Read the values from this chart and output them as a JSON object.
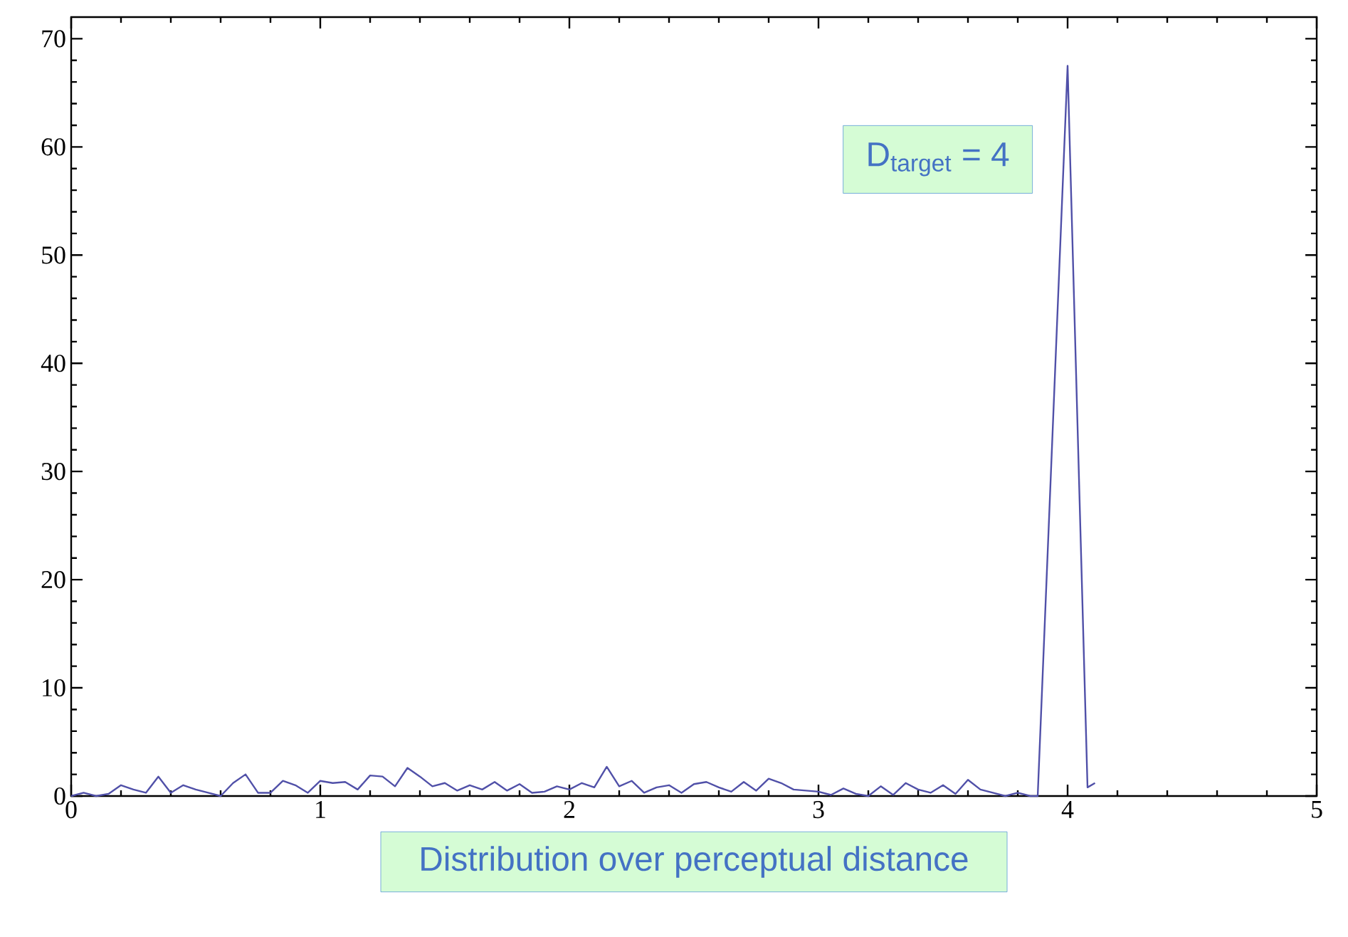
{
  "chart_data": {
    "type": "line",
    "xlabel": "Distribution over perceptual distance",
    "annotations": [
      "D$_{target}$ = 4"
    ],
    "x": [
      0,
      0.05,
      0.1,
      0.15,
      0.2,
      0.25,
      0.3,
      0.35,
      0.4,
      0.45,
      0.5,
      0.55,
      0.6,
      0.65,
      0.7,
      0.75,
      0.8,
      0.85,
      0.9,
      0.95,
      1.0,
      1.05,
      1.1,
      1.15,
      1.2,
      1.25,
      1.3,
      1.35,
      1.4,
      1.45,
      1.5,
      1.55,
      1.6,
      1.65,
      1.7,
      1.75,
      1.8,
      1.85,
      1.9,
      1.95,
      2.0,
      2.05,
      2.1,
      2.15,
      2.2,
      2.25,
      2.3,
      2.35,
      2.4,
      2.45,
      2.5,
      2.55,
      2.6,
      2.65,
      2.7,
      2.75,
      2.8,
      2.85,
      2.9,
      2.95,
      3.0,
      3.05,
      3.1,
      3.15,
      3.2,
      3.25,
      3.3,
      3.35,
      3.4,
      3.45,
      3.5,
      3.55,
      3.6,
      3.65,
      3.7,
      3.75,
      3.8,
      3.85,
      3.88,
      4.0,
      4.08,
      4.11
    ],
    "values": [
      0,
      0.3,
      0,
      0.2,
      1,
      0.6,
      0.3,
      1.8,
      0.3,
      1,
      0.6,
      0.3,
      0,
      1.2,
      2,
      0.3,
      0.3,
      1.4,
      1,
      0.3,
      1.4,
      1.2,
      1.3,
      0.6,
      1.9,
      1.8,
      0.9,
      2.6,
      1.8,
      0.9,
      1.2,
      0.5,
      1,
      0.6,
      1.3,
      0.5,
      1.1,
      0.3,
      0.4,
      0.9,
      0.6,
      1.2,
      0.8,
      2.7,
      0.9,
      1.4,
      0.3,
      0.8,
      1,
      0.3,
      1.1,
      1.3,
      0.8,
      0.4,
      1.3,
      0.5,
      1.6,
      1.2,
      0.6,
      0.5,
      0.4,
      0.1,
      0.7,
      0.2,
      0,
      0.9,
      0.1,
      1.2,
      0.6,
      0.3,
      1,
      0.2,
      1.5,
      0.6,
      0.3,
      0,
      0.3,
      0,
      0,
      67.5,
      0.8,
      1.2
    ],
    "color": "#5050a8",
    "xlim": [
      0,
      5
    ],
    "ylim": [
      0,
      72
    ],
    "xticks": [
      0,
      1,
      2,
      3,
      4,
      5
    ],
    "yticks": [
      0,
      10,
      20,
      30,
      40,
      50,
      60,
      70
    ]
  }
}
